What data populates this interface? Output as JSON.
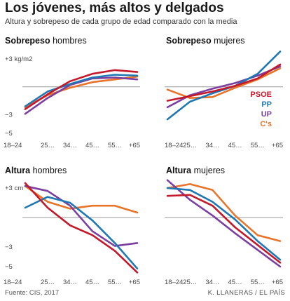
{
  "header": {
    "title": "Los jóvenes, más altos y delgados",
    "subtitle": "Altura y sobrepeso de cada grupo de edad comparado con la media"
  },
  "footer": {
    "source": "Fuente: CIS, 2017",
    "credit": "K. LLANERAS / EL PAÍS"
  },
  "colors": {
    "PSOE": "#c4182b",
    "PP": "#1f78b4",
    "UP": "#7b3fa1",
    "Cs": "#e8742a",
    "zero_line": "#999999"
  },
  "chart_data": [
    {
      "type": "line",
      "title_bold": "Sobrepeso",
      "title_rest": " hombres",
      "categories": [
        "18–24",
        "25…",
        "34…",
        "45…",
        "55…",
        "+65"
      ],
      "ylim": [
        -5,
        3
      ],
      "yticks": [
        3,
        -3,
        -5
      ],
      "ytick_labels": [
        "+3 kg/m2",
        "−3",
        "−5"
      ],
      "legend": false,
      "series": [
        {
          "name": "PSOE",
          "values": [
            -2.4,
            -0.8,
            0.6,
            1.4,
            1.8,
            1.6
          ]
        },
        {
          "name": "PP",
          "values": [
            -2.1,
            -0.5,
            0.3,
            1.0,
            1.3,
            1.2
          ]
        },
        {
          "name": "UP",
          "values": [
            -2.9,
            -1.2,
            0.2,
            0.9,
            1.0,
            0.8
          ]
        },
        {
          "name": "Cs",
          "values": [
            -2.2,
            -0.9,
            -0.1,
            0.5,
            0.8,
            1.1
          ]
        }
      ]
    },
    {
      "type": "line",
      "title_bold": "Sobrepeso",
      "title_rest": " mujeres",
      "categories": [
        "18–24",
        "25…",
        "34…",
        "45…",
        "55…",
        "+65"
      ],
      "ylim": [
        -5,
        3
      ],
      "yticks": [
        3,
        -3,
        -5
      ],
      "ytick_labels": [
        "",
        "",
        ""
      ],
      "legend": true,
      "series": [
        {
          "name": "PSOE",
          "values": [
            -1.5,
            -1.0,
            -0.5,
            0.1,
            0.9,
            2.4
          ]
        },
        {
          "name": "PP",
          "values": [
            -3.5,
            -1.6,
            -0.7,
            0.1,
            1.4,
            3.8
          ]
        },
        {
          "name": "UP",
          "values": [
            -2.2,
            -0.9,
            -0.2,
            0.4,
            1.2,
            2.2
          ]
        },
        {
          "name": "Cs",
          "values": [
            -0.3,
            -1.2,
            -1.1,
            -0.1,
            0.8,
            2.0
          ]
        }
      ]
    },
    {
      "type": "line",
      "title_bold": "Altura",
      "title_rest": " hombres",
      "categories": [
        "18–24",
        "25…",
        "34…",
        "45…",
        "55…",
        "+65"
      ],
      "ylim": [
        -5,
        3
      ],
      "yticks": [
        3,
        -3,
        -5
      ],
      "ytick_labels": [
        "+3 cm",
        "−3",
        "−5"
      ],
      "legend": false,
      "series": [
        {
          "name": "PSOE",
          "values": [
            3.5,
            1.0,
            -0.8,
            -1.8,
            -3.4,
            -5.6
          ]
        },
        {
          "name": "PP",
          "values": [
            1.0,
            2.1,
            1.5,
            -0.3,
            -2.6,
            -5.2
          ]
        },
        {
          "name": "UP",
          "values": [
            3.2,
            2.7,
            1.2,
            -1.4,
            -2.9,
            -2.6
          ]
        },
        {
          "name": "Cs",
          "values": [
            3.2,
            1.6,
            0.9,
            1.2,
            1.2,
            0.5
          ]
        }
      ]
    },
    {
      "type": "line",
      "title_bold": "Altura",
      "title_rest": " mujeres",
      "categories": [
        "18–24",
        "25…",
        "34…",
        "45…",
        "55…",
        "+65"
      ],
      "ylim": [
        -5,
        3
      ],
      "yticks": [
        3,
        -3,
        -5
      ],
      "ytick_labels": [
        "",
        "",
        ""
      ],
      "legend": false,
      "series": [
        {
          "name": "PSOE",
          "values": [
            2.2,
            2.3,
            1.2,
            -1.0,
            -2.8,
            -4.6
          ]
        },
        {
          "name": "PP",
          "values": [
            3.0,
            2.8,
            1.6,
            -0.2,
            -2.4,
            -4.3
          ]
        },
        {
          "name": "UP",
          "values": [
            3.8,
            1.8,
            0.2,
            -1.6,
            -3.3,
            -5.0
          ]
        },
        {
          "name": "Cs",
          "values": [
            3.0,
            3.4,
            2.8,
            0.2,
            -1.8,
            -2.4
          ]
        }
      ]
    }
  ],
  "legend_items": [
    {
      "label": "PSOE",
      "color_key": "PSOE"
    },
    {
      "label": "PP",
      "color_key": "PP"
    },
    {
      "label": "UP",
      "color_key": "UP"
    },
    {
      "label": "C's",
      "color_key": "Cs"
    }
  ]
}
